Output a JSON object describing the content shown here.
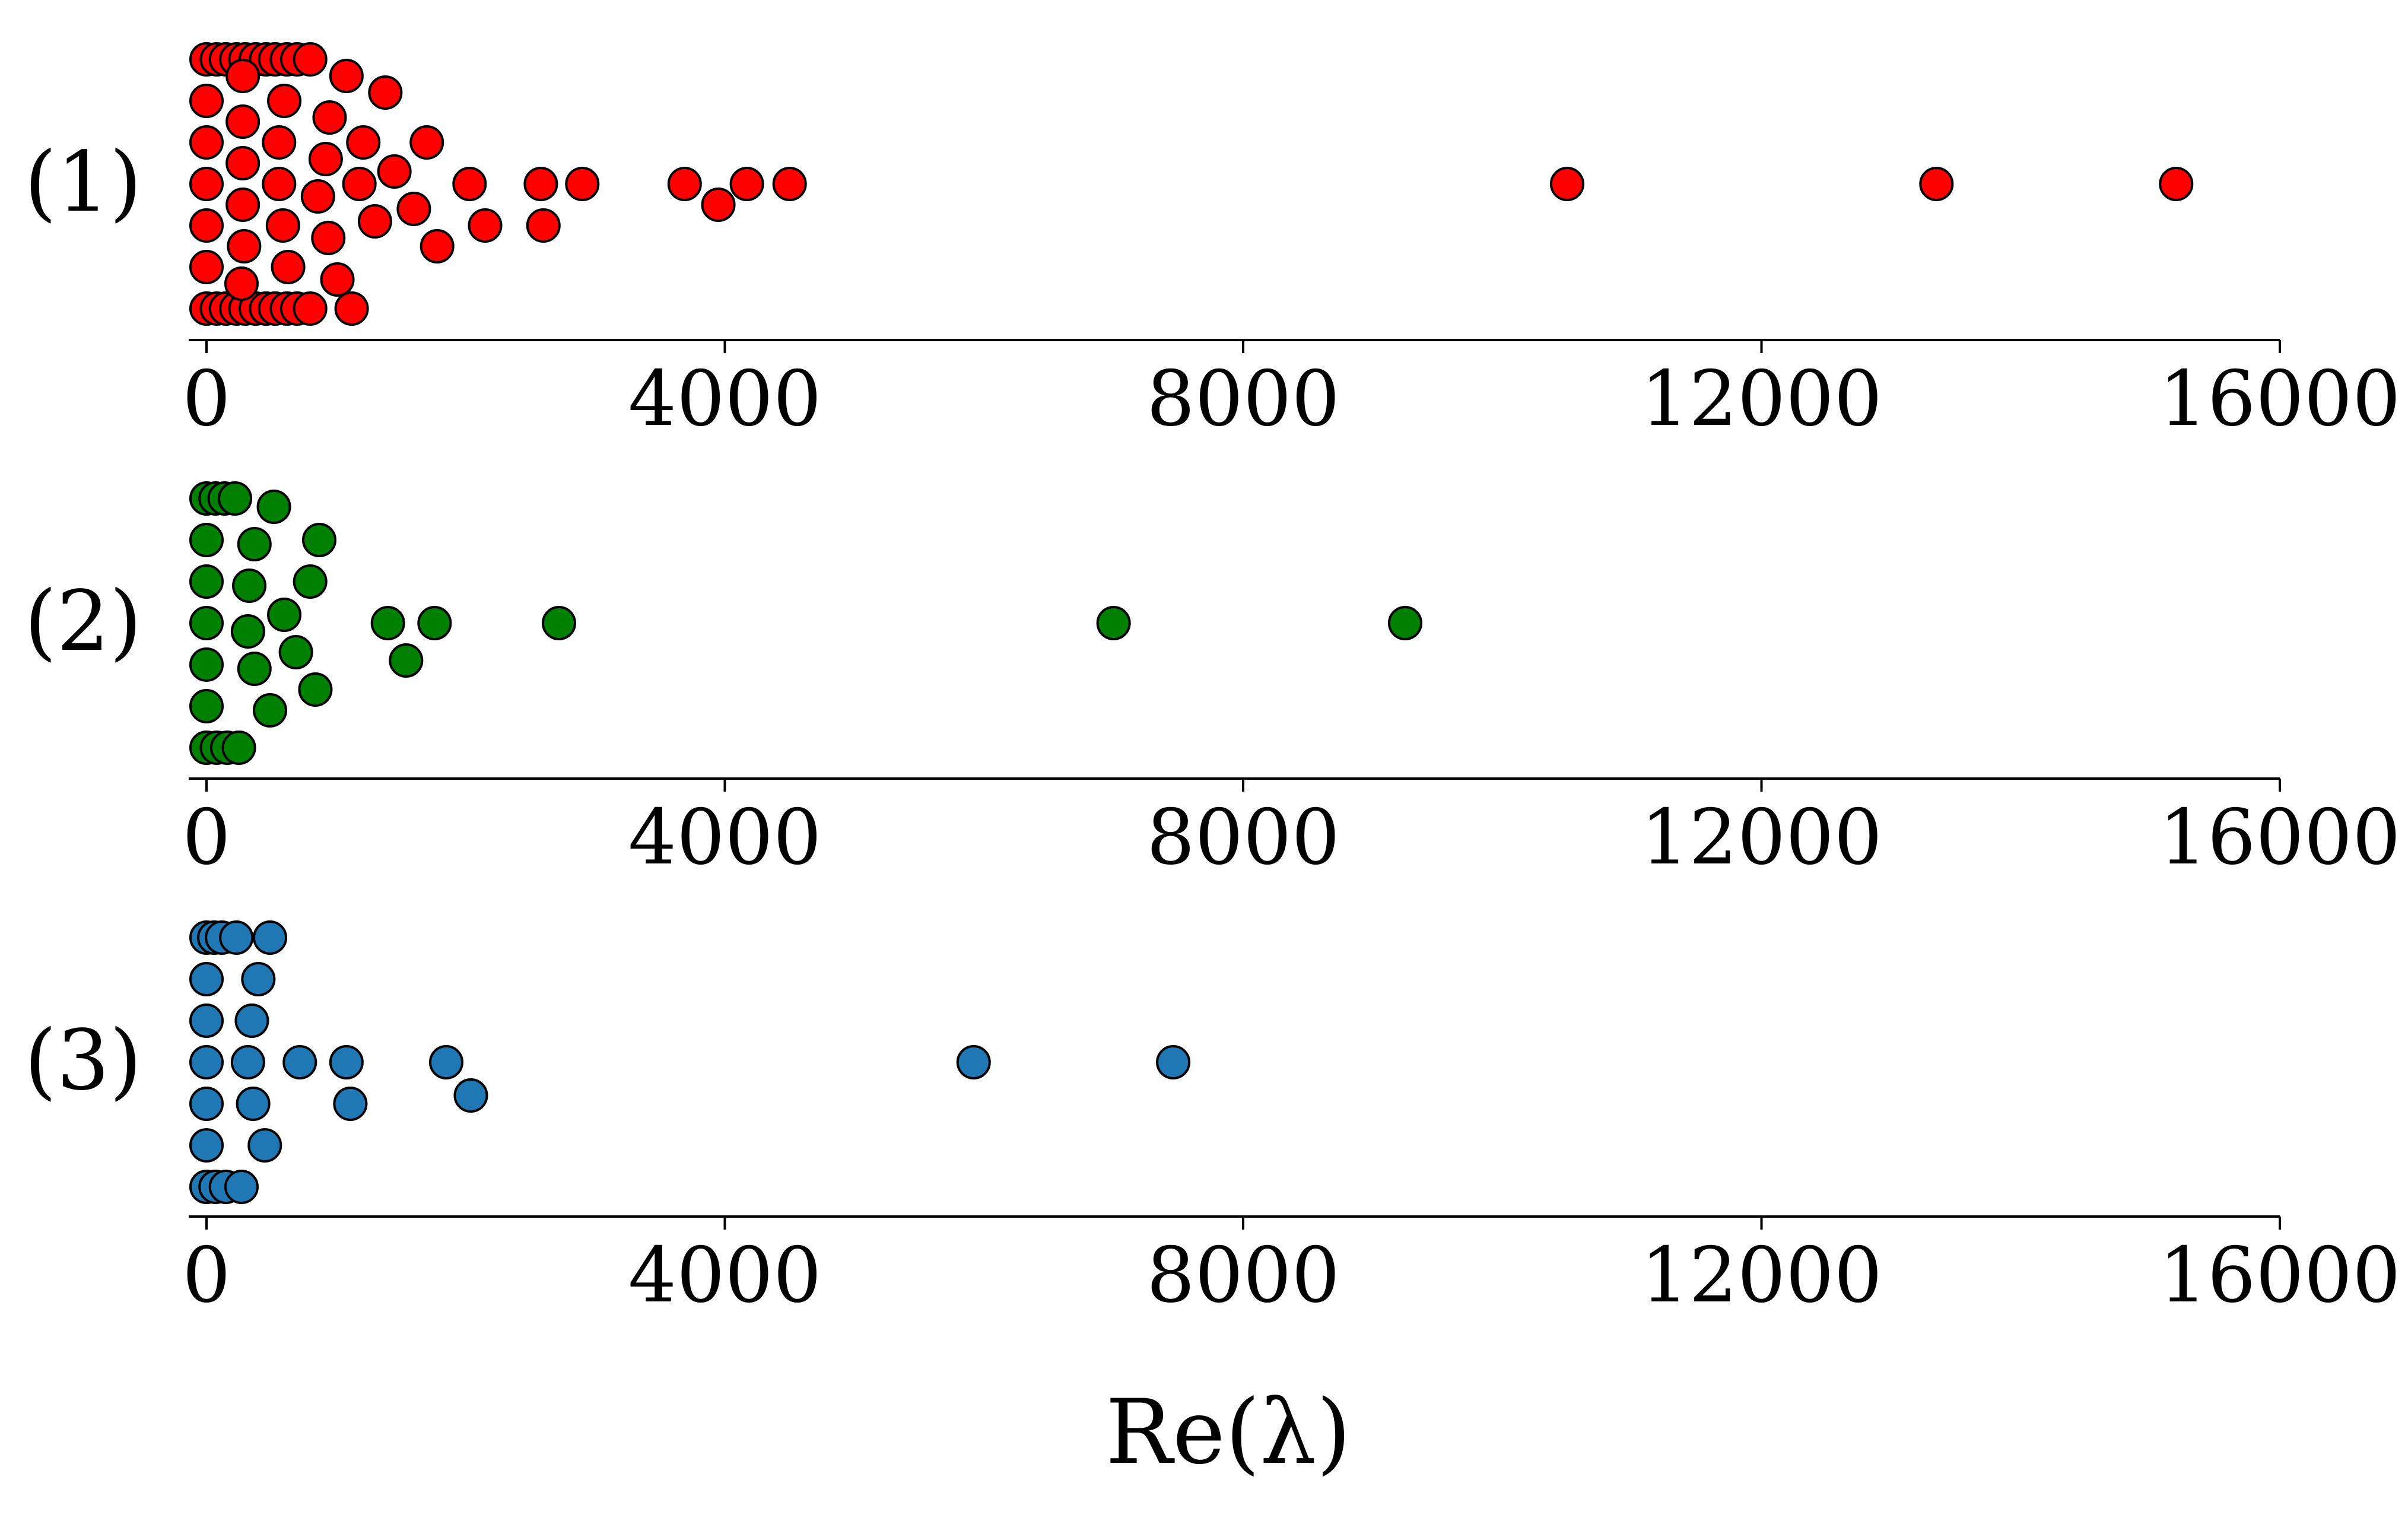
{
  "figure": {
    "xlabel": "Re(λ)"
  },
  "chart_data": [
    {
      "type": "scatter",
      "panel_label": "(1)",
      "color": "#ff0000",
      "edge_color": "#000000",
      "xlim": [
        0,
        16000
      ],
      "xticks": [
        "0",
        "4000",
        "8000",
        "12000",
        "16000"
      ],
      "xtick_values": [
        0,
        4000,
        8000,
        12000,
        16000
      ],
      "grid": false,
      "points": [
        {
          "x": 0,
          "y": 3
        },
        {
          "x": 80,
          "y": 3
        },
        {
          "x": 150,
          "y": 3
        },
        {
          "x": 230,
          "y": 3
        },
        {
          "x": 300,
          "y": 3
        },
        {
          "x": 380,
          "y": 3
        },
        {
          "x": 460,
          "y": 3
        },
        {
          "x": 530,
          "y": 3
        },
        {
          "x": 620,
          "y": 3
        },
        {
          "x": 700,
          "y": 3
        },
        {
          "x": 800,
          "y": 3
        },
        {
          "x": 0,
          "y": -3
        },
        {
          "x": 80,
          "y": -3
        },
        {
          "x": 150,
          "y": -3
        },
        {
          "x": 230,
          "y": -3
        },
        {
          "x": 300,
          "y": -3
        },
        {
          "x": 380,
          "y": -3
        },
        {
          "x": 460,
          "y": -3
        },
        {
          "x": 530,
          "y": -3
        },
        {
          "x": 620,
          "y": -3
        },
        {
          "x": 700,
          "y": -3
        },
        {
          "x": 800,
          "y": -3
        },
        {
          "x": 1120,
          "y": -3
        },
        {
          "x": 280,
          "y": 2.6
        },
        {
          "x": 1080,
          "y": 2.6
        },
        {
          "x": 0,
          "y": 2
        },
        {
          "x": 600,
          "y": 2
        },
        {
          "x": 1380,
          "y": 2.2
        },
        {
          "x": 280,
          "y": 1.5
        },
        {
          "x": 950,
          "y": 1.6
        },
        {
          "x": 0,
          "y": 1
        },
        {
          "x": 560,
          "y": 1
        },
        {
          "x": 1210,
          "y": 1
        },
        {
          "x": 1700,
          "y": 1
        },
        {
          "x": 280,
          "y": 0.5
        },
        {
          "x": 920,
          "y": 0.6
        },
        {
          "x": 1450,
          "y": 0.3
        },
        {
          "x": 0,
          "y": 0
        },
        {
          "x": 560,
          "y": 0
        },
        {
          "x": 1180,
          "y": 0
        },
        {
          "x": 2030,
          "y": 0
        },
        {
          "x": 2580,
          "y": 0
        },
        {
          "x": 2900,
          "y": 0
        },
        {
          "x": 3690,
          "y": 0
        },
        {
          "x": 4170,
          "y": 0
        },
        {
          "x": 4500,
          "y": 0
        },
        {
          "x": 10500,
          "y": 0
        },
        {
          "x": 13350,
          "y": 0
        },
        {
          "x": 15200,
          "y": 0
        },
        {
          "x": 280,
          "y": -0.5
        },
        {
          "x": 860,
          "y": -0.3
        },
        {
          "x": 1600,
          "y": -0.6
        },
        {
          "x": 3950,
          "y": -0.5
        },
        {
          "x": 0,
          "y": -1
        },
        {
          "x": 590,
          "y": -1
        },
        {
          "x": 1300,
          "y": -0.9
        },
        {
          "x": 2150,
          "y": -1
        },
        {
          "x": 2600,
          "y": -1
        },
        {
          "x": 290,
          "y": -1.5
        },
        {
          "x": 940,
          "y": -1.3
        },
        {
          "x": 1780,
          "y": -1.5
        },
        {
          "x": 0,
          "y": -2
        },
        {
          "x": 630,
          "y": -2
        },
        {
          "x": 1010,
          "y": -2.3
        },
        {
          "x": 270,
          "y": -2.4
        }
      ]
    },
    {
      "type": "scatter",
      "panel_label": "(2)",
      "color": "#008000",
      "edge_color": "#000000",
      "xlim": [
        0,
        16000
      ],
      "xticks": [
        "0",
        "4000",
        "8000",
        "12000",
        "16000"
      ],
      "xtick_values": [
        0,
        4000,
        8000,
        12000,
        16000
      ],
      "grid": false,
      "points": [
        {
          "x": 0,
          "y": 3
        },
        {
          "x": 70,
          "y": 3
        },
        {
          "x": 140,
          "y": 3
        },
        {
          "x": 220,
          "y": 3
        },
        {
          "x": 520,
          "y": 2.8
        },
        {
          "x": 0,
          "y": 2
        },
        {
          "x": 370,
          "y": 1.9
        },
        {
          "x": 870,
          "y": 2
        },
        {
          "x": 0,
          "y": 1
        },
        {
          "x": 330,
          "y": 0.9
        },
        {
          "x": 800,
          "y": 1
        },
        {
          "x": 600,
          "y": 0.2
        },
        {
          "x": 0,
          "y": 0
        },
        {
          "x": 320,
          "y": -0.2
        },
        {
          "x": 1400,
          "y": 0
        },
        {
          "x": 1760,
          "y": 0
        },
        {
          "x": 2720,
          "y": 0
        },
        {
          "x": 7000,
          "y": 0
        },
        {
          "x": 9250,
          "y": 0
        },
        {
          "x": 0,
          "y": -1
        },
        {
          "x": 370,
          "y": -1.1
        },
        {
          "x": 690,
          "y": -0.7
        },
        {
          "x": 1540,
          "y": -0.9
        },
        {
          "x": 840,
          "y": -1.6
        },
        {
          "x": 0,
          "y": -2
        },
        {
          "x": 490,
          "y": -2.1
        },
        {
          "x": 0,
          "y": -3
        },
        {
          "x": 80,
          "y": -3
        },
        {
          "x": 160,
          "y": -3
        },
        {
          "x": 250,
          "y": -3
        }
      ]
    },
    {
      "type": "scatter",
      "panel_label": "(3)",
      "color": "#1f77b4",
      "edge_color": "#000000",
      "xlim": [
        0,
        16000
      ],
      "xticks": [
        "0",
        "4000",
        "8000",
        "12000",
        "16000"
      ],
      "xtick_values": [
        0,
        4000,
        8000,
        12000,
        16000
      ],
      "grid": false,
      "points": [
        {
          "x": 0,
          "y": 3
        },
        {
          "x": 60,
          "y": 3
        },
        {
          "x": 120,
          "y": 3
        },
        {
          "x": 230,
          "y": 3
        },
        {
          "x": 490,
          "y": 3
        },
        {
          "x": 0,
          "y": 2
        },
        {
          "x": 400,
          "y": 2
        },
        {
          "x": 0,
          "y": 1
        },
        {
          "x": 350,
          "y": 1
        },
        {
          "x": 0,
          "y": 0
        },
        {
          "x": 320,
          "y": 0
        },
        {
          "x": 720,
          "y": 0
        },
        {
          "x": 1080,
          "y": 0
        },
        {
          "x": 1850,
          "y": 0
        },
        {
          "x": 5920,
          "y": 0
        },
        {
          "x": 7460,
          "y": 0
        },
        {
          "x": 0,
          "y": -1
        },
        {
          "x": 360,
          "y": -1
        },
        {
          "x": 1110,
          "y": -1
        },
        {
          "x": 2040,
          "y": -0.8
        },
        {
          "x": 0,
          "y": -2
        },
        {
          "x": 450,
          "y": -2
        },
        {
          "x": 0,
          "y": -3
        },
        {
          "x": 70,
          "y": -3
        },
        {
          "x": 150,
          "y": -3
        },
        {
          "x": 270,
          "y": -3
        }
      ]
    }
  ]
}
